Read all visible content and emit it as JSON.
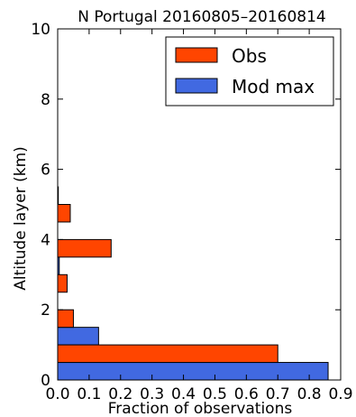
{
  "chart_data": {
    "type": "bar",
    "orientation": "horizontal",
    "title": "N Portugal 20160805–20160814",
    "xlabel": "Fraction of observations",
    "ylabel": "Altitude layer (km)",
    "xlim": [
      0,
      0.9
    ],
    "ylim": [
      0,
      10
    ],
    "xticks": [
      "0.0",
      "0.1",
      "0.2",
      "0.3",
      "0.4",
      "0.5",
      "0.6",
      "0.7",
      "0.8",
      "0.9"
    ],
    "yticks": [
      "0",
      "2",
      "4",
      "6",
      "8",
      "10"
    ],
    "legend_position": "top-right",
    "bin_width_km": 1,
    "series": [
      {
        "name": "Obs",
        "color": "#ff4500",
        "bins": [
          {
            "altitude_start": 0,
            "value": 0.7
          },
          {
            "altitude_start": 1,
            "value": 0.05
          },
          {
            "altitude_start": 2,
            "value": 0.03
          },
          {
            "altitude_start": 3,
            "value": 0.17
          },
          {
            "altitude_start": 4,
            "value": 0.04
          },
          {
            "altitude_start": 5,
            "value": 0.0
          }
        ]
      },
      {
        "name": "Mod max",
        "color": "#4169e1",
        "bins": [
          {
            "altitude_start": 0,
            "value": 0.86
          },
          {
            "altitude_start": 1,
            "value": 0.13
          },
          {
            "altitude_start": 2,
            "value": 0.0
          },
          {
            "altitude_start": 3,
            "value": 0.005
          },
          {
            "altitude_start": 4,
            "value": 0.0
          },
          {
            "altitude_start": 5,
            "value": 0.002
          }
        ]
      }
    ]
  }
}
